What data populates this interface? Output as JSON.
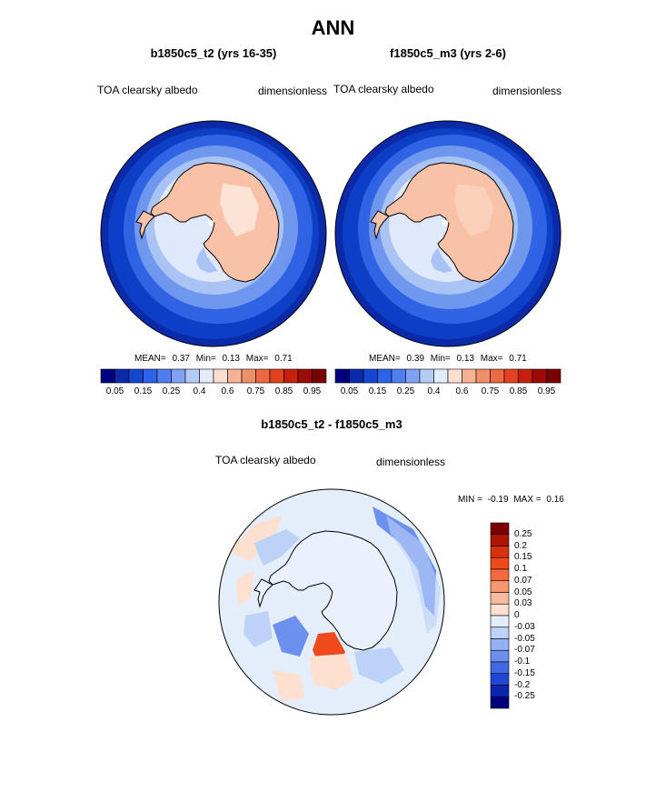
{
  "page_title": "ANN",
  "panels": [
    {
      "title": "b1850c5_t2 (yrs 16-35)",
      "variable": "TOA clearsky albedo",
      "units": "dimensionless",
      "stats": {
        "mean_label": "MEAN=",
        "mean": "0.37",
        "min_label": "Min=",
        "min": "0.13",
        "max_label": "Max=",
        "max": "0.71"
      }
    },
    {
      "title": "f1850c5_m3 (yrs 2-6)",
      "variable": "TOA clearsky albedo",
      "units": "dimensionless",
      "stats": {
        "mean_label": "MEAN=",
        "mean": "0.39",
        "min_label": "Min=",
        "min": "0.13",
        "max_label": "Max=",
        "max": "0.71"
      }
    }
  ],
  "colorbar_horizontal": {
    "colors": [
      "#00007f",
      "#0a2aa8",
      "#1446d2",
      "#2e62e8",
      "#4f7ef0",
      "#7fa2f2",
      "#b4cbf6",
      "#e3ecfa",
      "#fbe0cf",
      "#f5b295",
      "#f08e6a",
      "#ea6a45",
      "#e2421f",
      "#c61f0c",
      "#9c0c04",
      "#7a0000"
    ],
    "tick_labels": [
      "0.05",
      "0.15",
      "0.25",
      "0.4",
      "0.6",
      "0.75",
      "0.85",
      "0.95"
    ]
  },
  "diff_panel": {
    "title": "b1850c5_t2 - f1850c5_m3",
    "variable": "TOA clearsky albedo",
    "units": "dimensionless",
    "min_label": "MIN =",
    "min": "-0.19",
    "max_label": "MAX =",
    "max": "0.16"
  },
  "colorbar_vertical": {
    "colors": [
      "#7a0000",
      "#b01405",
      "#d7310e",
      "#ee4a1c",
      "#f26a3e",
      "#f6966e",
      "#f9bb9c",
      "#fde0cf",
      "#e4eefb",
      "#bcd2f6",
      "#92b2f2",
      "#6b90ee",
      "#3f6ae6",
      "#1e47d6",
      "#0a24b0",
      "#00007f"
    ],
    "tick_labels": [
      "0.25",
      "0.2",
      "0.15",
      "0.1",
      "0.07",
      "0.05",
      "0.03",
      "0",
      "-0.03",
      "-0.05",
      "-0.07",
      "-0.1",
      "-0.15",
      "-0.2",
      "-0.25"
    ]
  },
  "map_colors": {
    "ocean_deep": "#0d3ec6",
    "ocean_mid": "#2f63e3",
    "ocean_light": "#6f97ee",
    "seaice": "#a9c4f4",
    "pale": "#dfe9fb",
    "ice_sheet": "#f9c2a6",
    "ice_sheet_high": "#fbe3d5",
    "diff_bg": "#e4eefb",
    "diff_neg1": "#bcd2f6",
    "diff_neg2": "#6b90ee",
    "diff_pos1": "#fde0cf",
    "diff_pos2": "#ee4a1c"
  }
}
